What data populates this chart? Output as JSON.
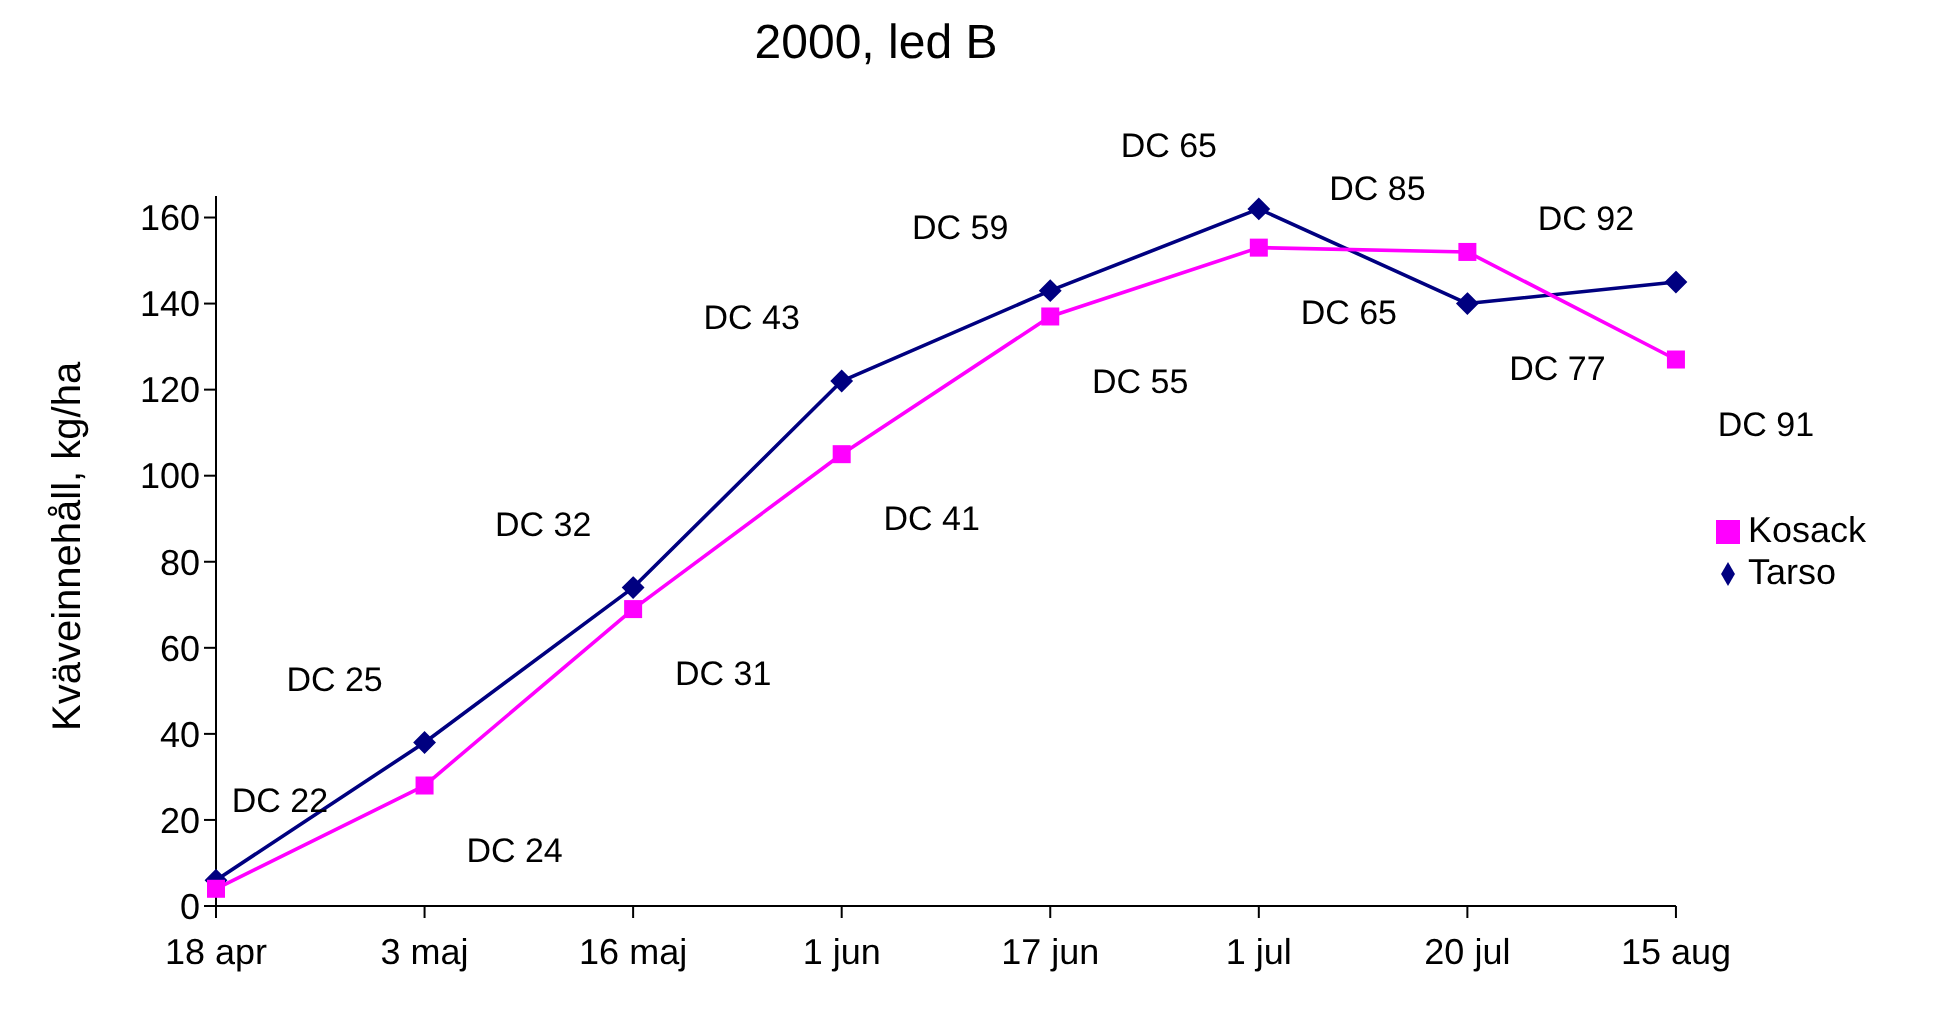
{
  "chart_data": {
    "type": "line",
    "title": "2000, led B",
    "ylabel": "Kväveinnehåll, kg/ha",
    "categories": [
      "18 apr",
      "3 maj",
      "16 maj",
      "1 jun",
      "17 jun",
      "1 jul",
      "20 jul",
      "15 aug"
    ],
    "series": [
      {
        "name": "Tarso",
        "color": "#000080",
        "marker": "diamond",
        "values": [
          6,
          38,
          74,
          122,
          143,
          162,
          140,
          145
        ]
      },
      {
        "name": "Kosack",
        "color": "#ff00ff",
        "marker": "square",
        "values": [
          4,
          28,
          69,
          105,
          137,
          153,
          152,
          127
        ]
      }
    ],
    "ylim": [
      0,
      165
    ],
    "yticks": [
      0,
      20,
      40,
      60,
      80,
      100,
      120,
      140,
      160
    ],
    "grid": false,
    "legend": "right",
    "line_style": "solid",
    "annotations": [
      {
        "text": "DC 22",
        "x": "18 apr",
        "y": 6
      },
      {
        "text": "DC 25",
        "x": "3 maj",
        "y": 38
      },
      {
        "text": "DC 24",
        "x": "3 maj",
        "y": 28
      },
      {
        "text": "DC 32",
        "x": "16 maj",
        "y": 74
      },
      {
        "text": "DC 31",
        "x": "16 maj",
        "y": 69
      },
      {
        "text": "DC 43",
        "x": "1 jun",
        "y": 122
      },
      {
        "text": "DC 41",
        "x": "1 jun",
        "y": 105
      },
      {
        "text": "DC 59",
        "x": "17 jun",
        "y": 143
      },
      {
        "text": "DC 55",
        "x": "17 jun",
        "y": 137
      },
      {
        "text": "DC 65",
        "x": "1 jul",
        "y": 162
      },
      {
        "text": "DC 65",
        "x": "1 jul",
        "y": 153
      },
      {
        "text": "DC 85",
        "x": "20 jul",
        "y": 152
      },
      {
        "text": "DC 77",
        "x": "20 jul",
        "y": 140
      },
      {
        "text": "DC 92",
        "x": "15 aug",
        "y": 145
      },
      {
        "text": "DC 91",
        "x": "15 aug",
        "y": 127
      }
    ]
  }
}
